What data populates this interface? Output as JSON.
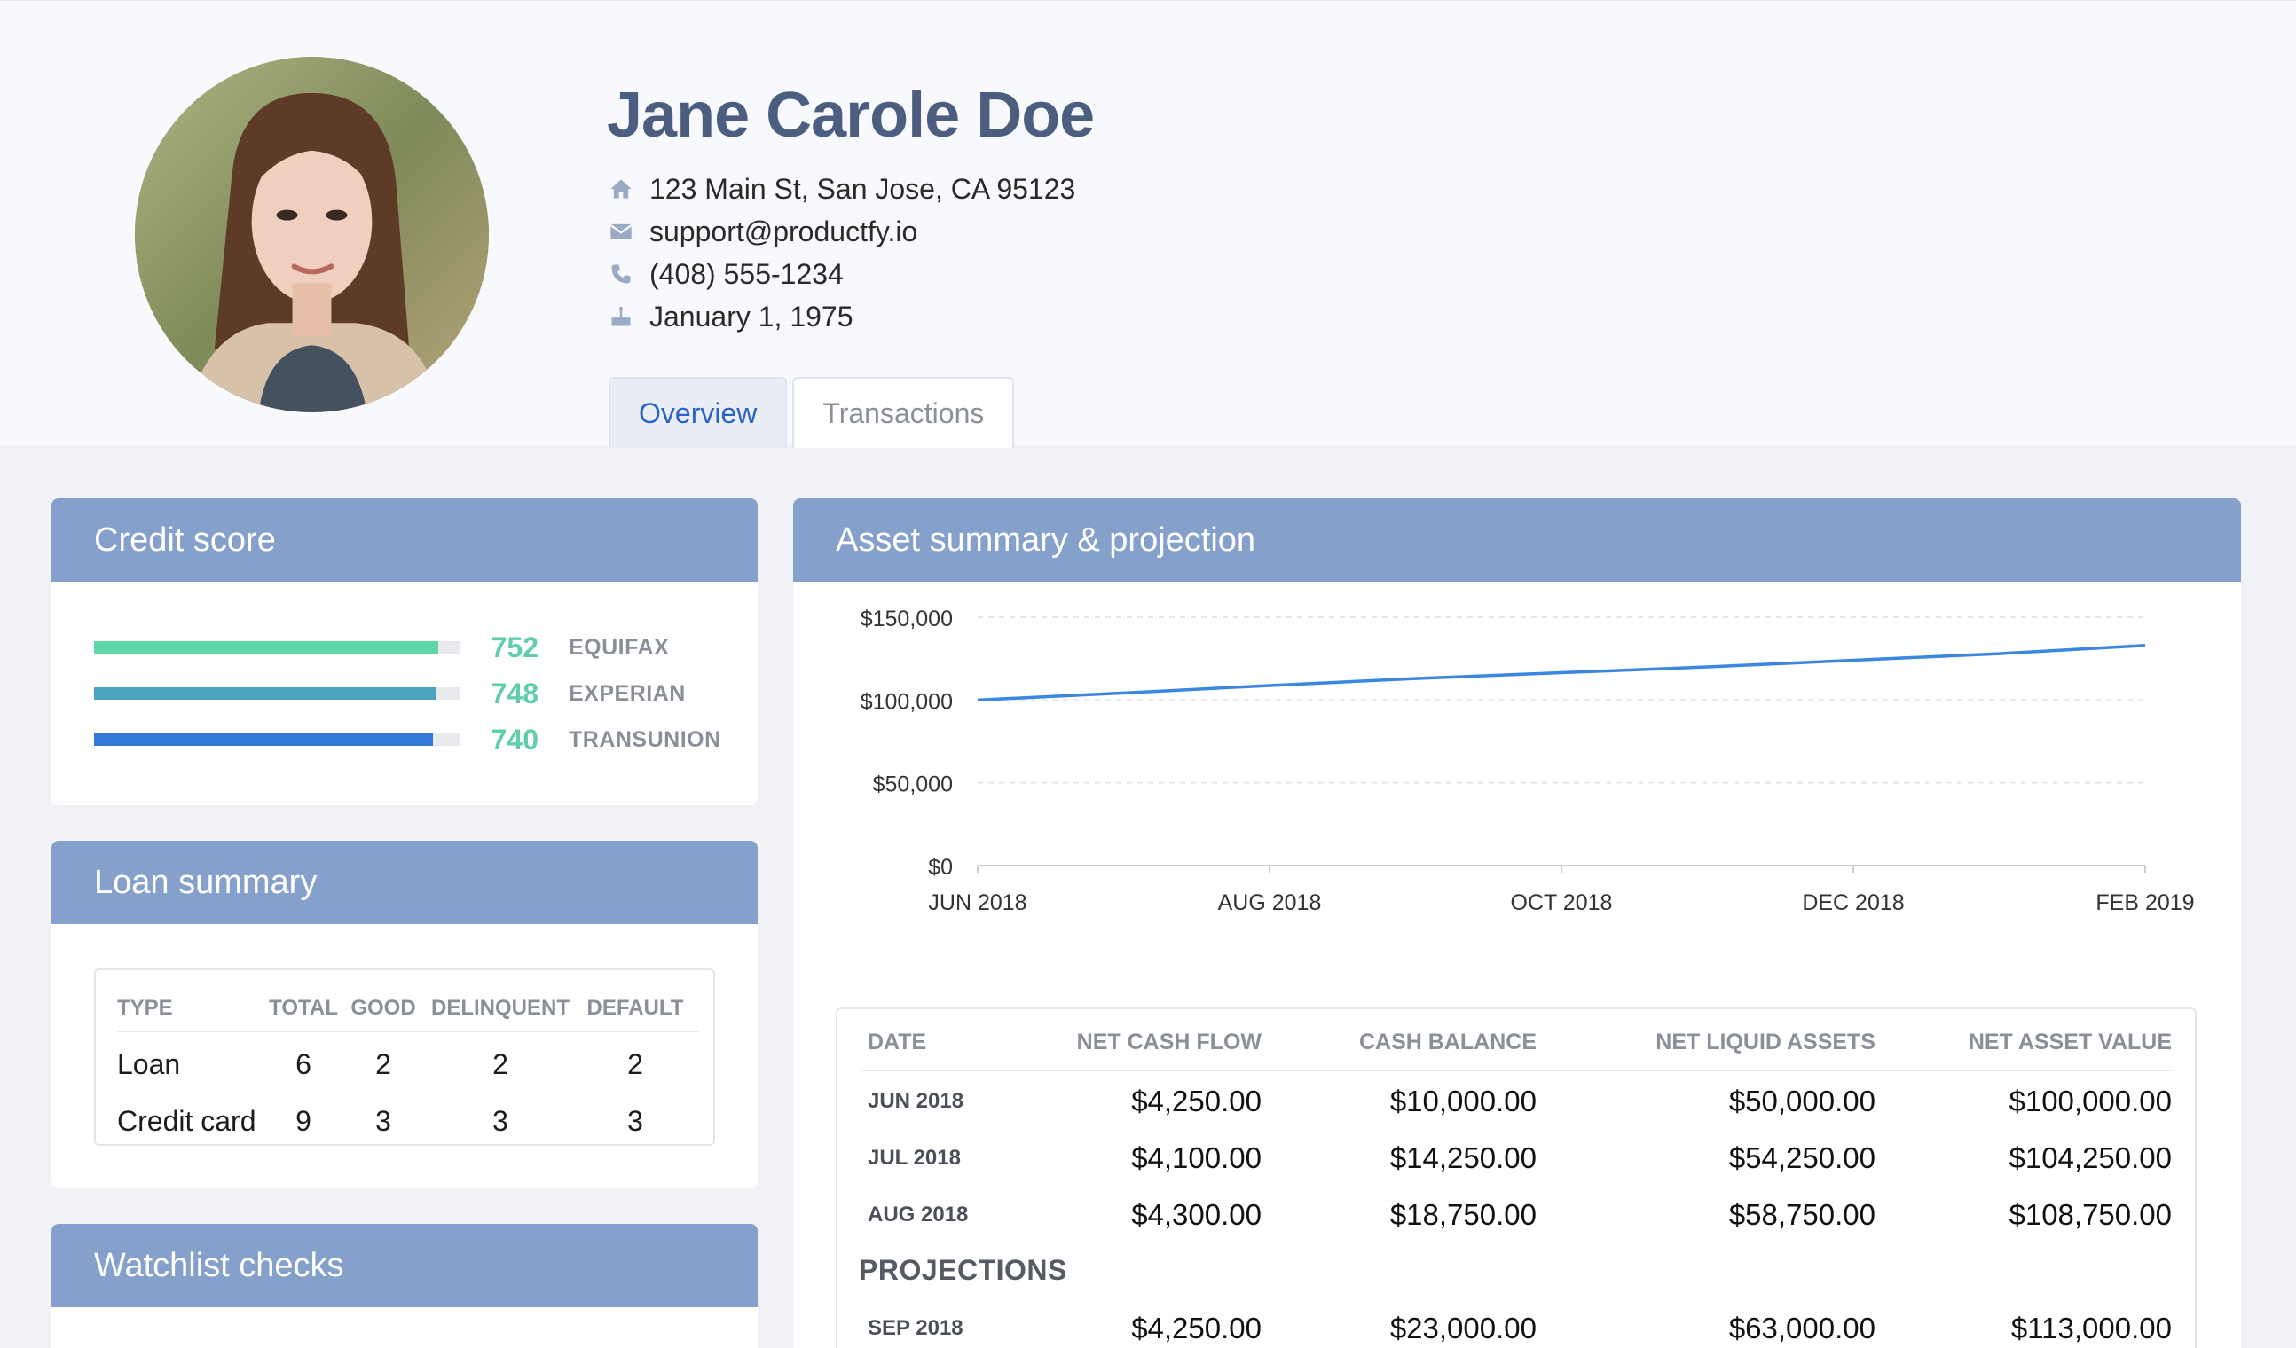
{
  "profile": {
    "name": "Jane Carole Doe",
    "address": "123 Main St, San Jose, CA 95123",
    "email": "support@productfy.io",
    "phone": "(408) 555-1234",
    "birthday": "January 1, 1975"
  },
  "tabs": [
    {
      "label": "Overview",
      "active": true
    },
    {
      "label": "Transactions",
      "active": false
    }
  ],
  "credit_score": {
    "title": "Credit score",
    "bureaus": [
      {
        "value": "752",
        "label": "EQUIFAX",
        "fraction": 0.94,
        "color": "#5fd6a9"
      },
      {
        "value": "748",
        "label": "EXPERIAN",
        "fraction": 0.935,
        "color": "#4aa3bf"
      },
      {
        "value": "740",
        "label": "TRANSUNION",
        "fraction": 0.925,
        "color": "#3478d6"
      }
    ]
  },
  "loan_summary": {
    "title": "Loan summary",
    "columns": [
      "TYPE",
      "TOTAL",
      "GOOD",
      "DELINQUENT",
      "DEFAULT"
    ],
    "rows": [
      {
        "type": "Loan",
        "total": "6",
        "good": "2",
        "delinquent": "2",
        "default": "2"
      },
      {
        "type": "Credit card",
        "total": "9",
        "good": "3",
        "delinquent": "3",
        "default": "3"
      }
    ]
  },
  "watchlist": {
    "title": "Watchlist checks"
  },
  "asset_summary": {
    "title": "Asset summary & projection",
    "columns": [
      "DATE",
      "NET CASH FLOW",
      "CASH BALANCE",
      "NET LIQUID ASSETS",
      "NET ASSET VALUE"
    ],
    "rows": [
      {
        "date": "JUN 2018",
        "ncf": "$4,250.00",
        "cb": "$10,000.00",
        "nla": "$50,000.00",
        "nav": "$100,000.00"
      },
      {
        "date": "JUL 2018",
        "ncf": "$4,100.00",
        "cb": "$14,250.00",
        "nla": "$54,250.00",
        "nav": "$104,250.00"
      },
      {
        "date": "AUG 2018",
        "ncf": "$4,300.00",
        "cb": "$18,750.00",
        "nla": "$58,750.00",
        "nav": "$108,750.00"
      }
    ],
    "projections_label": "PROJECTIONS",
    "projection_rows": [
      {
        "date": "SEP 2018",
        "ncf": "$4,250.00",
        "cb": "$23,000.00",
        "nla": "$63,000.00",
        "nav": "$113,000.00"
      }
    ]
  },
  "chart_data": {
    "type": "line",
    "title": "",
    "xlabel": "",
    "ylabel": "",
    "x_ticks": [
      "JUN 2018",
      "AUG 2018",
      "OCT 2018",
      "DEC 2018",
      "FEB 2019"
    ],
    "y_ticks": [
      "$0",
      "$50,000",
      "$100,000",
      "$150,000"
    ],
    "y_tick_values": [
      0,
      50000,
      100000,
      150000
    ],
    "ylim": [
      0,
      150000
    ],
    "grid": true,
    "line_color": "#3a86e0",
    "series": [
      {
        "x": [
          "JUN 2018",
          "JUL 2018",
          "AUG 2018",
          "SEP 2018",
          "OCT 2018",
          "NOV 2018",
          "DEC 2018",
          "JAN 2019",
          "FEB 2019"
        ],
        "values": [
          100000,
          104250,
          108750,
          113000,
          116500,
          120000,
          124000,
          128000,
          133000
        ]
      }
    ]
  }
}
